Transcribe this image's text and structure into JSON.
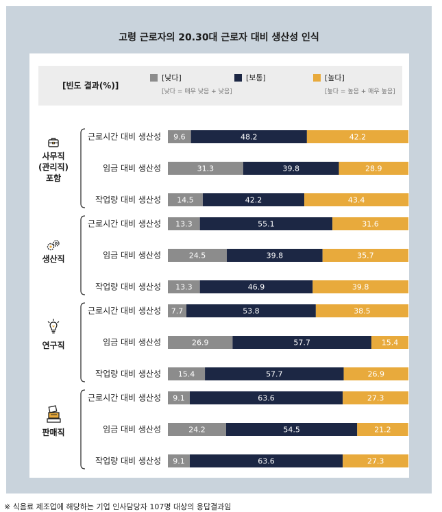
{
  "title": "고령 근로자의 20.30대 근로자 대비 생산성 인식",
  "legend": {
    "heading": "[빈도 결과(%)]",
    "items": [
      {
        "label": "[낮다]",
        "color": "#8c8c8c",
        "note": "[낮다 = 매우 낮음 + 낮음]"
      },
      {
        "label": "[보통]",
        "color": "#1c2744",
        "note": ""
      },
      {
        "label": "[높다]",
        "color": "#e8aa3c",
        "note": "[높다 = 높음 + 매우 높음]"
      }
    ]
  },
  "footnote": "※ 식음료 제조업에 해당하는 기업 인사담당자 107명 대상의 응답결과임",
  "chart_data": {
    "type": "bar",
    "orientation": "horizontal",
    "stacked": true,
    "xlim": [
      0,
      100
    ],
    "unit": "%",
    "series_names": [
      "낮다",
      "보통",
      "높다"
    ],
    "groups": [
      {
        "name": "사무직\n(관리직)\n포함",
        "lines": [
          "사무직",
          "(관리직)",
          "포함"
        ],
        "icon": "briefcase-icon",
        "rows": [
          {
            "label": "근로시간 대비 생산성",
            "values": [
              9.6,
              48.2,
              42.2
            ]
          },
          {
            "label": "임금 대비 생산성",
            "values": [
              31.3,
              39.8,
              28.9
            ]
          },
          {
            "label": "작업량 대비 생산성",
            "values": [
              14.5,
              42.2,
              43.4
            ]
          }
        ]
      },
      {
        "name": "생산직",
        "lines": [
          "생산직"
        ],
        "icon": "gears-icon",
        "rows": [
          {
            "label": "근로시간 대비 생산성",
            "values": [
              13.3,
              55.1,
              31.6
            ]
          },
          {
            "label": "임금 대비 생산성",
            "values": [
              24.5,
              39.8,
              35.7
            ]
          },
          {
            "label": "작업량 대비 생산성",
            "values": [
              13.3,
              46.9,
              39.8
            ]
          }
        ]
      },
      {
        "name": "연구직",
        "lines": [
          "연구직"
        ],
        "icon": "lightbulb-icon",
        "rows": [
          {
            "label": "근로시간 대비 생산성",
            "values": [
              7.7,
              53.8,
              38.5
            ]
          },
          {
            "label": "임금 대비 생산성",
            "values": [
              26.9,
              57.7,
              15.4
            ]
          },
          {
            "label": "작업량 대비 생산성",
            "values": [
              15.4,
              57.7,
              26.9
            ]
          }
        ]
      },
      {
        "name": "판매직",
        "lines": [
          "판매직"
        ],
        "icon": "cashier-icon",
        "rows": [
          {
            "label": "근로시간 대비 생산성",
            "values": [
              9.1,
              63.6,
              27.3
            ]
          },
          {
            "label": "임금 대비 생산성",
            "values": [
              24.2,
              54.5,
              21.2
            ]
          },
          {
            "label": "작업량 대비 생산성",
            "values": [
              9.1,
              63.6,
              27.3
            ]
          }
        ]
      }
    ]
  }
}
